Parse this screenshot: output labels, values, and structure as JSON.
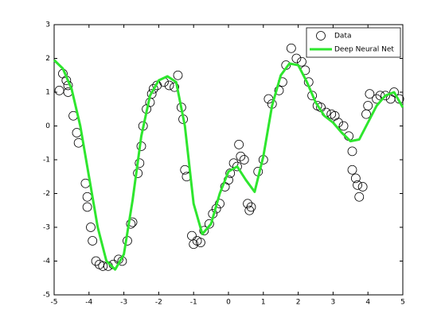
{
  "chart_data": {
    "type": "scatter",
    "xlim": [
      -5,
      5
    ],
    "xticks": [
      -5,
      -4,
      -3,
      -2,
      -1,
      0,
      1,
      2,
      3,
      4,
      5
    ],
    "ylim": [
      -5,
      3
    ],
    "yticks": [
      -5,
      -4,
      -3,
      -2,
      -1,
      0,
      1,
      2,
      3
    ],
    "legend": "northeast",
    "series": [
      {
        "name": "Data",
        "type": "scatter",
        "color": "#000000",
        "x": [
          -4.85,
          -4.75,
          -4.65,
          -4.6,
          -4.6,
          -4.45,
          -4.35,
          -4.3,
          -4.1,
          -4.05,
          -4.05,
          -3.95,
          -3.9,
          -3.8,
          -3.7,
          -3.6,
          -3.45,
          -3.3,
          -3.15,
          -3.05,
          -2.9,
          -2.8,
          -2.75,
          -2.6,
          -2.55,
          -2.5,
          -2.45,
          -2.35,
          -2.25,
          -2.2,
          -2.15,
          -2.05,
          -1.85,
          -1.7,
          -1.55,
          -1.45,
          -1.35,
          -1.3,
          -1.25,
          -1.2,
          -1.05,
          -1.0,
          -0.9,
          -0.8,
          -0.7,
          -0.55,
          -0.45,
          -0.35,
          -0.25,
          -0.1,
          0.0,
          0.05,
          0.15,
          0.25,
          0.3,
          0.35,
          0.45,
          0.55,
          0.6,
          0.65,
          0.85,
          1.0,
          1.15,
          1.25,
          1.45,
          1.55,
          1.65,
          1.8,
          1.95,
          2.1,
          2.2,
          2.3,
          2.4,
          2.55,
          2.65,
          2.8,
          2.95,
          3.05,
          3.15,
          3.3,
          3.45,
          3.55,
          3.55,
          3.65,
          3.7,
          3.75,
          3.85,
          3.95,
          4.0,
          4.05,
          4.25,
          4.35,
          4.5,
          4.65,
          4.75,
          4.9
        ],
        "values": [
          1.05,
          1.55,
          1.35,
          1.2,
          1.0,
          0.3,
          -0.2,
          -0.5,
          -1.7,
          -2.1,
          -2.4,
          -3.0,
          -3.4,
          -4.0,
          -4.1,
          -4.15,
          -4.15,
          -4.1,
          -3.95,
          -4.0,
          -3.4,
          -2.9,
          -2.85,
          -1.4,
          -1.1,
          -0.6,
          0.0,
          0.5,
          0.7,
          0.95,
          1.1,
          1.2,
          1.3,
          1.2,
          1.15,
          1.5,
          0.55,
          0.2,
          -1.3,
          -1.5,
          -3.25,
          -3.5,
          -3.4,
          -3.45,
          -3.1,
          -2.9,
          -2.6,
          -2.45,
          -2.3,
          -1.8,
          -1.6,
          -1.4,
          -1.1,
          -1.2,
          -0.55,
          -0.9,
          -1.0,
          -2.3,
          -2.5,
          -2.4,
          -1.35,
          -1.0,
          0.8,
          0.65,
          1.05,
          1.3,
          1.8,
          2.3,
          2.0,
          1.9,
          1.65,
          1.3,
          0.9,
          0.6,
          0.55,
          0.4,
          0.35,
          0.3,
          0.1,
          0.0,
          -0.3,
          -0.75,
          -1.3,
          -1.55,
          -1.75,
          -2.1,
          -1.8,
          0.35,
          0.6,
          0.95,
          0.8,
          0.9,
          0.9,
          0.8,
          1.0,
          0.8
        ]
      },
      {
        "name": "Deep Neural Net",
        "type": "line",
        "color": "#2ee62e",
        "x": [
          -5,
          -4.75,
          -4.5,
          -4.25,
          -4,
          -3.75,
          -3.5,
          -3.25,
          -3,
          -2.75,
          -2.5,
          -2.25,
          -2,
          -1.75,
          -1.5,
          -1.25,
          -1,
          -0.75,
          -0.5,
          -0.25,
          0,
          0.25,
          0.5,
          0.75,
          1,
          1.25,
          1.5,
          1.75,
          2,
          2.25,
          2.5,
          2.75,
          3,
          3.25,
          3.5,
          3.75,
          4,
          4.25,
          4.5,
          4.75,
          5
        ],
        "values": [
          1.95,
          1.7,
          1.1,
          0.0,
          -1.5,
          -3.0,
          -4.0,
          -4.25,
          -3.8,
          -2.2,
          -0.3,
          0.9,
          1.35,
          1.47,
          1.3,
          0.0,
          -2.3,
          -3.2,
          -2.9,
          -2.0,
          -1.35,
          -1.2,
          -1.6,
          -1.95,
          -0.9,
          0.6,
          1.5,
          1.85,
          1.8,
          1.3,
          0.7,
          0.3,
          0.1,
          -0.2,
          -0.45,
          -0.4,
          0.1,
          0.6,
          0.9,
          1.0,
          0.55
        ]
      }
    ]
  }
}
